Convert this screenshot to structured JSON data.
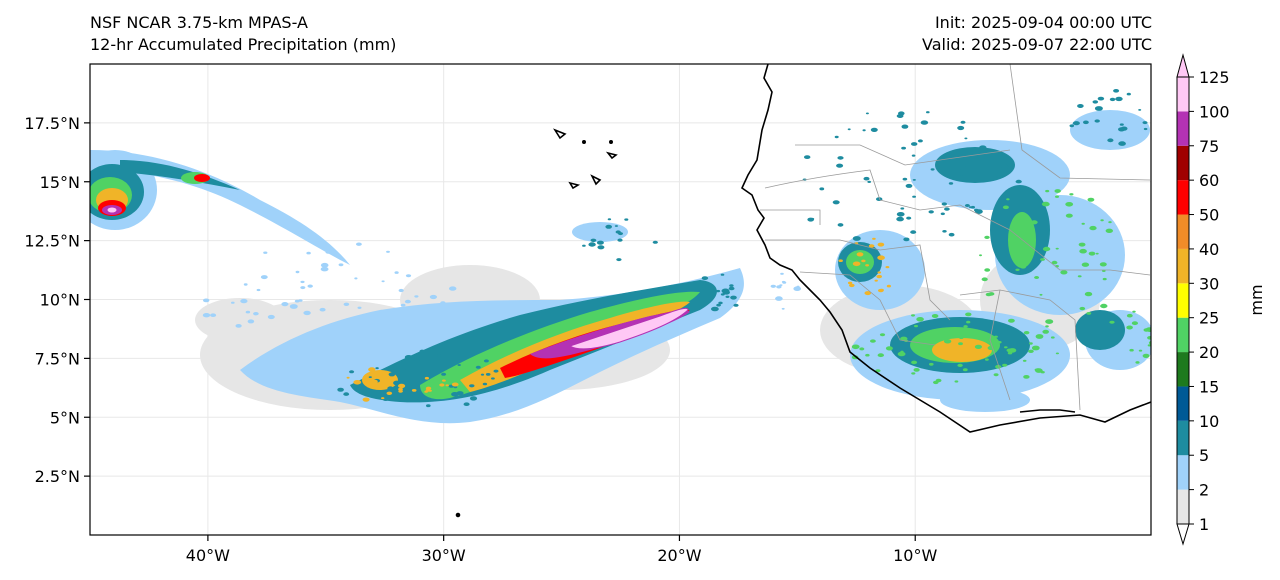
{
  "header": {
    "model": "NSF NCAR 3.75-km MPAS-A",
    "field": "12-hr Accumulated Precipitation (mm)",
    "init": "Init: 2025-09-04 00:00 UTC",
    "valid": "Valid: 2025-09-07 22:00 UTC"
  },
  "map": {
    "lon_range": [
      -45,
      0
    ],
    "lat_range": [
      0,
      20
    ],
    "lon_ticks": [
      {
        "value": -40,
        "label": "40°W"
      },
      {
        "value": -30,
        "label": "30°W"
      },
      {
        "value": -20,
        "label": "20°W"
      },
      {
        "value": -10,
        "label": "10°W"
      }
    ],
    "lat_ticks": [
      {
        "value": 2.5,
        "label": "2.5°N"
      },
      {
        "value": 5,
        "label": "5°N"
      },
      {
        "value": 7.5,
        "label": "7.5°N"
      },
      {
        "value": 10,
        "label": "10°N"
      },
      {
        "value": 12.5,
        "label": "12.5°N"
      },
      {
        "value": 15,
        "label": "15°N"
      },
      {
        "value": 17.5,
        "label": "17.5°N"
      }
    ],
    "gridlines": true
  },
  "colorbar": {
    "label": "mm",
    "levels": [
      "1",
      "2",
      "5",
      "10",
      "15",
      "20",
      "25",
      "30",
      "40",
      "50",
      "60",
      "75",
      "100",
      "125"
    ],
    "colors": [
      "#e6e6e6",
      "#a0d2fa",
      "#1e8ca0",
      "#005a96",
      "#1e7a1e",
      "#50d264",
      "#ffff00",
      "#f0b428",
      "#f08c28",
      "#ff0000",
      "#a00000",
      "#b432b4",
      "#ffc8f5"
    ]
  },
  "colors": {
    "coast": "#000000",
    "borders": "#9a9a9a",
    "grid": "#e8e8e8"
  }
}
